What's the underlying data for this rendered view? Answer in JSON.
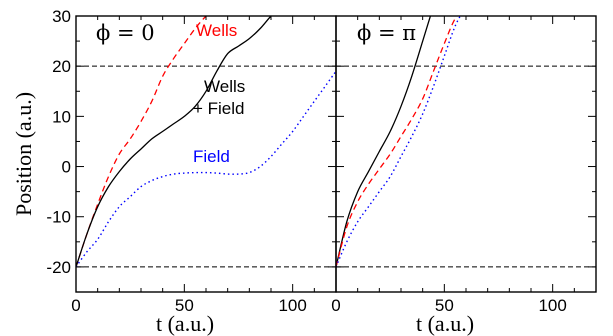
{
  "chart_data": [
    {
      "type": "line",
      "title": "ϕ = 0",
      "xlabel": "t (a.u.)",
      "ylabel": "Position (a.u.)",
      "xlim": [
        0,
        120
      ],
      "ylim": [
        -25,
        30
      ],
      "xticks": [
        "0",
        "50",
        "100"
      ],
      "yticks": [
        "-20",
        "-10",
        "0",
        "10",
        "20",
        "30"
      ],
      "grid": false,
      "hlines": [
        20,
        -20
      ],
      "series": [
        {
          "name": "Wells",
          "label_lines": [
            "Wells"
          ],
          "color": "#ff0000",
          "dash": "dashed",
          "x": [
            0,
            5,
            10,
            15,
            20,
            25,
            30,
            35,
            40,
            45,
            50,
            55,
            60,
            65
          ],
          "y": [
            -20,
            -13.5,
            -7.5,
            -2,
            2.5,
            5.5,
            9,
            13,
            18,
            21.5,
            24.5,
            27.5,
            30,
            32
          ]
        },
        {
          "name": "Wells + Field",
          "label_lines": [
            "Wells",
            "+ Field"
          ],
          "color": "#000000",
          "dash": "solid",
          "x": [
            0,
            5,
            10,
            15,
            20,
            25,
            30,
            35,
            40,
            45,
            50,
            55,
            60,
            65,
            70,
            75,
            80,
            85,
            90,
            95
          ],
          "y": [
            -20,
            -13.5,
            -8,
            -4,
            -1,
            1.5,
            3.5,
            5.5,
            7,
            8.5,
            10,
            12,
            15,
            19,
            22.5,
            24,
            25.5,
            27.5,
            30,
            32
          ]
        },
        {
          "name": "Field",
          "label_lines": [
            "Field"
          ],
          "color": "#0000ff",
          "dash": "dotted",
          "x": [
            0,
            5,
            10,
            15,
            20,
            25,
            30,
            35,
            40,
            45,
            50,
            55,
            60,
            65,
            70,
            75,
            80,
            85,
            90,
            95,
            100,
            105,
            110,
            115,
            120
          ],
          "y": [
            -20,
            -17,
            -14.5,
            -11,
            -8,
            -6,
            -4,
            -2.8,
            -2,
            -1.5,
            -1.3,
            -1.2,
            -1.2,
            -1.3,
            -1.5,
            -1.5,
            -1.2,
            0,
            2,
            4.5,
            7,
            10,
            13,
            16,
            19
          ]
        }
      ]
    },
    {
      "type": "line",
      "title": "ϕ = π",
      "xlabel": "t (a.u.)",
      "ylabel": "",
      "xlim": [
        0,
        120
      ],
      "ylim": [
        -25,
        30
      ],
      "xticks": [
        "0",
        "50",
        "100"
      ],
      "yticks": [],
      "grid": false,
      "hlines": [
        20,
        -20
      ],
      "series": [
        {
          "color": "#000000",
          "dash": "solid",
          "x": [
            0,
            5,
            10,
            15,
            20,
            25,
            30,
            35,
            40,
            45
          ],
          "y": [
            -20,
            -11,
            -5,
            -1,
            3,
            7,
            12,
            18,
            25,
            32
          ]
        },
        {
          "color": "#ff0000",
          "dash": "dashed",
          "x": [
            0,
            5,
            10,
            15,
            20,
            25,
            30,
            35,
            40,
            45,
            50,
            55,
            60
          ],
          "y": [
            -20,
            -12,
            -7,
            -3.5,
            -0.5,
            2.5,
            6,
            9.5,
            13.5,
            19,
            24.5,
            29.5,
            32
          ]
        },
        {
          "color": "#0000ff",
          "dash": "dotted",
          "x": [
            0,
            5,
            10,
            15,
            20,
            25,
            30,
            35,
            40,
            45,
            50,
            55,
            60
          ],
          "y": [
            -20,
            -15,
            -11,
            -8,
            -5,
            -2,
            2,
            6,
            10.5,
            16,
            22,
            28,
            32
          ]
        }
      ]
    }
  ]
}
